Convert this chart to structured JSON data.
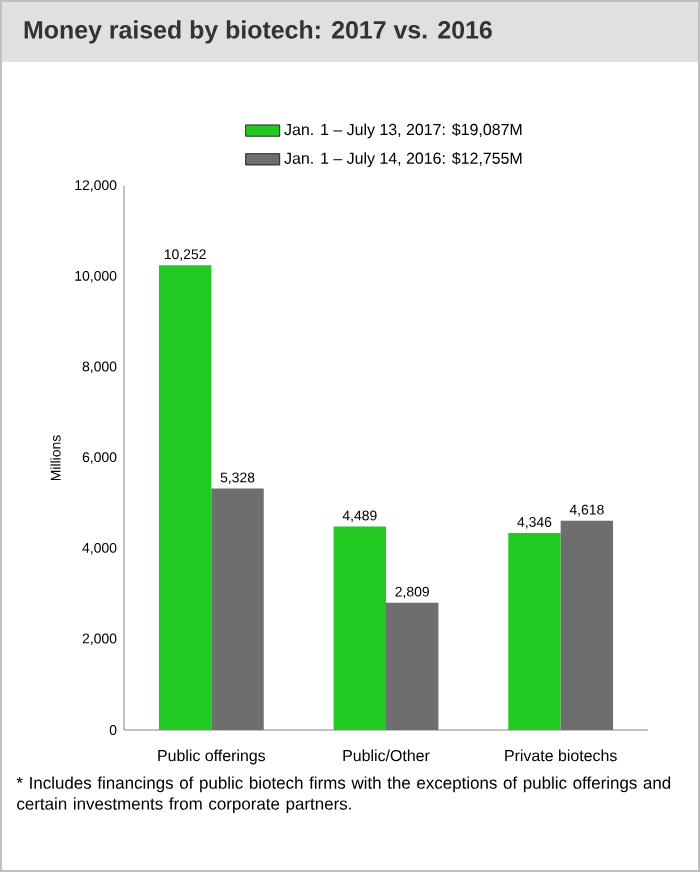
{
  "chart_data": {
    "type": "bar",
    "title": "Money raised by biotech: 2017 vs. 2016",
    "categories": [
      "Public offerings",
      "Public/Other",
      "Private biotechs"
    ],
    "series": [
      {
        "name": "Jan. 1 – July 13, 2017: $19,087M",
        "color": "#22c922",
        "values": [
          10252,
          4489,
          4346
        ],
        "value_labels": [
          "10,252",
          "4,489",
          "4,346"
        ]
      },
      {
        "name": "Jan. 1 – July 14, 2016: $12,755M",
        "color": "#6e6e6e",
        "values": [
          5328,
          2809,
          4618
        ],
        "value_labels": [
          "5,328",
          "2,809",
          "4,618"
        ]
      }
    ],
    "ylabel": "Millions",
    "ylim": [
      0,
      12000
    ],
    "yticks": [
      0,
      {
        "value": 2000,
        "label": "2,000"
      },
      {
        "value": 4000,
        "label": "4,000"
      },
      {
        "value": 6000,
        "label": "6,000"
      },
      {
        "value": 8000,
        "label": "8,000"
      },
      {
        "value": 10000,
        "label": "10,000"
      },
      {
        "value": 12000,
        "label": "12,000"
      }
    ],
    "legend": "top",
    "annotations": [
      "* Includes financings of public biotech firms with the exceptions of public offerings and certain investments from corporate partners."
    ]
  }
}
